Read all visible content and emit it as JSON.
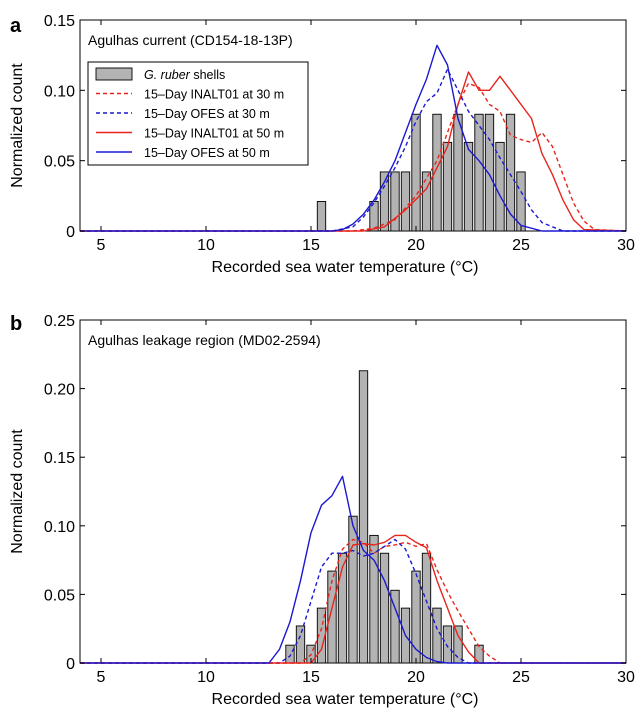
{
  "chart_data": [
    {
      "panel_label": "a",
      "type": "bar",
      "annotation": "Agulhas current (CD154-18-13P)",
      "xlabel": "Recorded sea water temperature (°C)",
      "ylabel": "Normalized count",
      "xlim": [
        4,
        30
      ],
      "ylim": [
        0,
        0.15
      ],
      "xticks": [
        5,
        10,
        15,
        20,
        25,
        30
      ],
      "xtick_labels": [
        "5",
        "10",
        "15",
        "20",
        "25",
        "30"
      ],
      "yticks": [
        0,
        0.05,
        0.1,
        0.15
      ],
      "ytick_labels": [
        "0",
        "0.05",
        "0.10",
        "0.15"
      ],
      "grid": false,
      "legend_position": "top-left",
      "legend": [
        {
          "prefix": "",
          "italic": "G. ruber",
          "suffix": " shells"
        },
        {
          "prefix": "15–Day INALT01 at 30 m",
          "italic": "",
          "suffix": ""
        },
        {
          "prefix": "15–Day OFES at 30 m",
          "italic": "",
          "suffix": ""
        },
        {
          "prefix": "15–Day INALT01 at 50 m",
          "italic": "",
          "suffix": ""
        },
        {
          "prefix": "15–Day OFES at 50 m",
          "italic": "",
          "suffix": ""
        }
      ],
      "bars": {
        "bin_width": 0.5,
        "color": "#b3b3b3",
        "x": [
          15.5,
          18.0,
          18.5,
          19.0,
          19.5,
          20.0,
          20.5,
          21.0,
          21.5,
          22.0,
          22.5,
          23.0,
          23.5,
          24.0,
          24.5,
          25.0
        ],
        "values": [
          0.021,
          0.021,
          0.042,
          0.042,
          0.042,
          0.083,
          0.042,
          0.083,
          0.063,
          0.083,
          0.063,
          0.083,
          0.083,
          0.063,
          0.083,
          0.042
        ]
      },
      "series": [
        {
          "color": "#e8251d",
          "dash": "dashed",
          "x": [
            4,
            16.0,
            17.0,
            18.0,
            19.0,
            20.0,
            21.0,
            21.5,
            22.0,
            22.5,
            23.0,
            23.5,
            24.0,
            24.5,
            25.0,
            25.5,
            26.0,
            26.5,
            27.0,
            27.5,
            28.0,
            28.5,
            30
          ],
          "y": [
            0,
            0,
            0,
            0.002,
            0.008,
            0.025,
            0.05,
            0.07,
            0.09,
            0.105,
            0.102,
            0.09,
            0.085,
            0.068,
            0.065,
            0.063,
            0.07,
            0.06,
            0.04,
            0.02,
            0.007,
            0.001,
            0
          ]
        },
        {
          "color": "#1b19d0",
          "dash": "dashed",
          "x": [
            4,
            16.0,
            17.0,
            17.5,
            18.0,
            18.5,
            19.0,
            19.5,
            20.0,
            20.5,
            21.0,
            21.5,
            22.0,
            22.5,
            23.0,
            23.5,
            24.0,
            24.5,
            25.0,
            25.5,
            26.0,
            27.0,
            30
          ],
          "y": [
            0,
            0,
            0.003,
            0.01,
            0.02,
            0.032,
            0.045,
            0.06,
            0.078,
            0.092,
            0.098,
            0.115,
            0.1,
            0.085,
            0.075,
            0.065,
            0.052,
            0.04,
            0.028,
            0.015,
            0.006,
            0,
            0
          ]
        },
        {
          "color": "#e8251d",
          "dash": "solid",
          "x": [
            4,
            17.5,
            18.5,
            19.5,
            20.5,
            21.0,
            21.5,
            22.0,
            22.5,
            23.0,
            23.5,
            24.0,
            24.5,
            25.0,
            25.5,
            26.0,
            26.5,
            27.0,
            27.5,
            28.0,
            30
          ],
          "y": [
            0,
            0,
            0.003,
            0.015,
            0.03,
            0.045,
            0.06,
            0.09,
            0.113,
            0.1,
            0.1,
            0.11,
            0.1,
            0.09,
            0.08,
            0.055,
            0.04,
            0.022,
            0.008,
            0.001,
            0
          ]
        },
        {
          "color": "#1b19d0",
          "dash": "solid",
          "x": [
            4,
            16.0,
            16.5,
            17.0,
            17.5,
            18.0,
            18.5,
            19.0,
            19.5,
            20.0,
            20.5,
            21.0,
            21.5,
            22.0,
            22.5,
            23.0,
            23.5,
            24.0,
            24.5,
            25.0,
            26.0,
            30
          ],
          "y": [
            0,
            0,
            0.001,
            0.005,
            0.012,
            0.022,
            0.035,
            0.05,
            0.07,
            0.09,
            0.108,
            0.132,
            0.118,
            0.08,
            0.058,
            0.05,
            0.04,
            0.025,
            0.012,
            0.004,
            0,
            0
          ]
        }
      ]
    },
    {
      "panel_label": "b",
      "type": "bar",
      "annotation": "Agulhas leakage region (MD02-2594)",
      "xlabel": "Recorded sea water temperature (°C)",
      "ylabel": "Normalized count",
      "xlim": [
        4,
        30
      ],
      "ylim": [
        0,
        0.25
      ],
      "xticks": [
        5,
        10,
        15,
        20,
        25,
        30
      ],
      "xtick_labels": [
        "5",
        "10",
        "15",
        "20",
        "25",
        "30"
      ],
      "yticks": [
        0,
        0.05,
        0.1,
        0.15,
        0.2,
        0.25
      ],
      "ytick_labels": [
        "0",
        "0.05",
        "0.10",
        "0.15",
        "0.20",
        "0.25"
      ],
      "grid": false,
      "legend_position": "none",
      "bars": {
        "bin_width": 0.5,
        "color": "#b3b3b3",
        "x": [
          14.0,
          14.5,
          15.0,
          15.5,
          16.0,
          16.5,
          17.0,
          17.5,
          18.0,
          18.5,
          19.0,
          19.5,
          20.0,
          20.5,
          21.0,
          21.5,
          22.0,
          23.0
        ],
        "values": [
          0.013,
          0.027,
          0.013,
          0.04,
          0.067,
          0.08,
          0.107,
          0.213,
          0.093,
          0.08,
          0.053,
          0.04,
          0.067,
          0.08,
          0.04,
          0.027,
          0.027,
          0.013
        ]
      },
      "series": [
        {
          "color": "#e8251d",
          "dash": "dashed",
          "x": [
            4,
            14.5,
            15.0,
            15.5,
            16.0,
            16.5,
            17.0,
            17.5,
            18.0,
            18.5,
            19.0,
            19.5,
            20.0,
            20.5,
            21.0,
            21.5,
            22.0,
            22.5,
            23.0,
            23.5,
            24.0,
            30
          ],
          "y": [
            0,
            0,
            0.006,
            0.025,
            0.06,
            0.083,
            0.09,
            0.088,
            0.08,
            0.085,
            0.086,
            0.088,
            0.085,
            0.087,
            0.068,
            0.052,
            0.038,
            0.025,
            0.012,
            0.005,
            0,
            0
          ]
        },
        {
          "color": "#1b19d0",
          "dash": "dashed",
          "x": [
            4,
            13.5,
            14.0,
            14.5,
            15.0,
            15.5,
            16.0,
            16.5,
            17.0,
            17.5,
            18.0,
            18.5,
            19.0,
            19.5,
            20.0,
            20.5,
            21.0,
            21.5,
            22.0,
            22.5,
            30
          ],
          "y": [
            0,
            0,
            0.005,
            0.02,
            0.045,
            0.07,
            0.08,
            0.08,
            0.082,
            0.078,
            0.08,
            0.085,
            0.09,
            0.083,
            0.065,
            0.045,
            0.025,
            0.012,
            0.004,
            0,
            0
          ]
        },
        {
          "color": "#e8251d",
          "dash": "solid",
          "x": [
            4,
            15.0,
            15.5,
            16.0,
            16.5,
            17.0,
            17.5,
            18.0,
            18.5,
            19.0,
            19.5,
            20.0,
            20.5,
            21.0,
            21.5,
            22.0,
            22.5,
            23.0,
            30
          ],
          "y": [
            0,
            0,
            0.01,
            0.04,
            0.07,
            0.086,
            0.087,
            0.086,
            0.088,
            0.093,
            0.093,
            0.088,
            0.084,
            0.06,
            0.04,
            0.02,
            0.008,
            0,
            0
          ]
        },
        {
          "color": "#1b19d0",
          "dash": "solid",
          "x": [
            4,
            13.0,
            13.5,
            14.0,
            14.5,
            15.0,
            15.5,
            16.0,
            16.5,
            17.0,
            17.5,
            18.0,
            18.5,
            19.0,
            19.5,
            20.0,
            20.5,
            21.0,
            21.5,
            30
          ],
          "y": [
            0,
            0,
            0.01,
            0.03,
            0.06,
            0.095,
            0.115,
            0.122,
            0.136,
            0.1,
            0.082,
            0.075,
            0.06,
            0.04,
            0.02,
            0.01,
            0.004,
            0.001,
            0,
            0
          ]
        }
      ]
    }
  ]
}
